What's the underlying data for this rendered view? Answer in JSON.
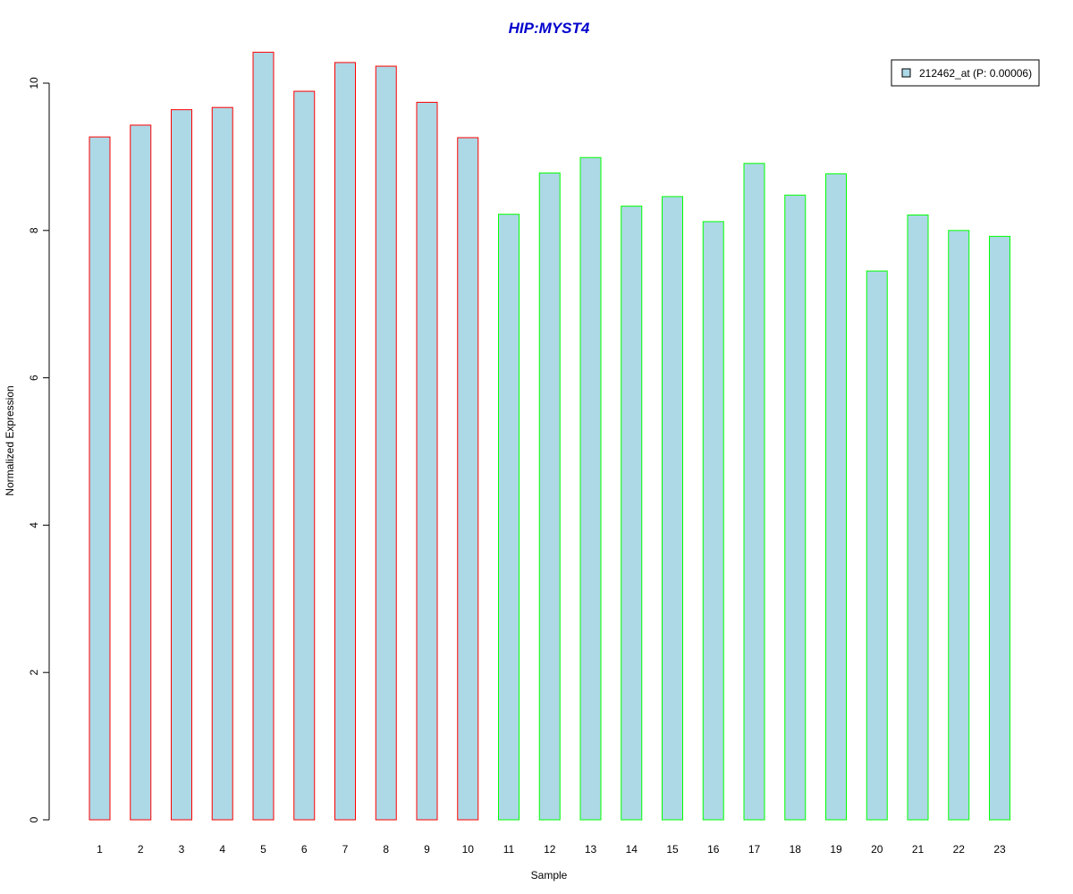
{
  "chart_data": {
    "type": "bar",
    "title": "HIP:MYST4",
    "title_color": "#0000CC",
    "xlabel": "Sample",
    "ylabel": "Normalized Expression",
    "categories": [
      "1",
      "2",
      "3",
      "4",
      "5",
      "6",
      "7",
      "8",
      "9",
      "10",
      "11",
      "12",
      "13",
      "14",
      "15",
      "16",
      "17",
      "18",
      "19",
      "20",
      "21",
      "22",
      "23"
    ],
    "series": [
      {
        "name": "212462_at (P: 0.00006)",
        "values": [
          9.27,
          9.43,
          9.64,
          9.67,
          10.42,
          9.89,
          10.28,
          10.23,
          9.74,
          9.26,
          8.22,
          8.78,
          8.99,
          8.33,
          8.46,
          8.12,
          8.91,
          8.48,
          8.77,
          7.45,
          8.21,
          8.0,
          7.92
        ],
        "fill": "#ADD8E6"
      }
    ],
    "border_colors": [
      "#FF0000",
      "#FF0000",
      "#FF0000",
      "#FF0000",
      "#FF0000",
      "#FF0000",
      "#FF0000",
      "#FF0000",
      "#FF0000",
      "#FF0000",
      "#00FF00",
      "#00FF00",
      "#00FF00",
      "#00FF00",
      "#00FF00",
      "#00FF00",
      "#00FF00",
      "#00FF00",
      "#00FF00",
      "#00FF00",
      "#00FF00",
      "#00FF00",
      "#00FF00"
    ],
    "ylim": [
      0,
      10.5
    ],
    "yticks": [
      "0",
      "2",
      "4",
      "6",
      "8",
      "10"
    ],
    "grid": false,
    "legend_position": "top-right"
  }
}
